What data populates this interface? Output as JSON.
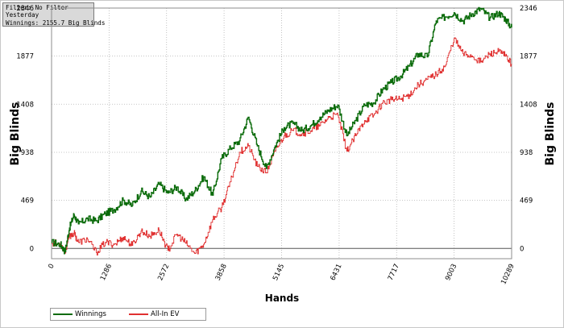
{
  "filter_box": {
    "line1": "Filter: No Filter",
    "line2": "Yesterday",
    "line3": "Winnings: 2155.7 Big Blinds"
  },
  "chart_data": {
    "type": "line",
    "xlabel": "Hands",
    "ylabel": "Big Blinds",
    "ylabel_right": "Big Blinds",
    "x_ticks": [
      0,
      1286,
      2572,
      3858,
      5145,
      6431,
      7717,
      9003,
      10289
    ],
    "y_ticks": [
      0,
      469,
      938,
      1408,
      1877,
      2346
    ],
    "xlim": [
      0,
      10289
    ],
    "ylim": [
      -100,
      2346
    ],
    "grid": true,
    "legend_position": "bottom-left",
    "series": [
      {
        "name": "Winnings",
        "color": "#0a6b0a",
        "x": [
          0,
          200,
          300,
          400,
          500,
          600,
          800,
          1000,
          1200,
          1400,
          1600,
          1800,
          2000,
          2200,
          2400,
          2600,
          2800,
          3000,
          3200,
          3400,
          3600,
          3800,
          4000,
          4200,
          4400,
          4600,
          4800,
          5000,
          5200,
          5400,
          5600,
          5800,
          6000,
          6200,
          6400,
          6600,
          6800,
          7000,
          7200,
          7400,
          7600,
          7800,
          8000,
          8200,
          8400,
          8600,
          8800,
          9000,
          9200,
          9400,
          9600,
          9800,
          10000,
          10150,
          10289
        ],
        "y": [
          60,
          40,
          -30,
          200,
          330,
          240,
          290,
          270,
          340,
          380,
          470,
          420,
          560,
          500,
          630,
          540,
          600,
          480,
          560,
          700,
          520,
          880,
          980,
          1050,
          1280,
          1000,
          780,
          1000,
          1180,
          1220,
          1150,
          1200,
          1280,
          1350,
          1400,
          1100,
          1250,
          1400,
          1420,
          1550,
          1620,
          1680,
          1780,
          1900,
          1870,
          2220,
          2260,
          2300,
          2220,
          2290,
          2340,
          2250,
          2300,
          2240,
          2155
        ]
      },
      {
        "name": "All-In EV",
        "color": "#e03030",
        "x": [
          0,
          200,
          300,
          400,
          500,
          600,
          800,
          1000,
          1200,
          1400,
          1600,
          1800,
          2000,
          2200,
          2400,
          2600,
          2800,
          3000,
          3200,
          3400,
          3600,
          3800,
          4000,
          4200,
          4400,
          4600,
          4800,
          5000,
          5200,
          5400,
          5600,
          5800,
          6000,
          6200,
          6400,
          6600,
          6800,
          7000,
          7200,
          7400,
          7600,
          7800,
          8000,
          8200,
          8400,
          8600,
          8800,
          9000,
          9200,
          9400,
          9600,
          9800,
          10000,
          10150,
          10289
        ],
        "y": [
          60,
          40,
          -30,
          120,
          150,
          60,
          90,
          -40,
          60,
          40,
          110,
          30,
          170,
          120,
          180,
          -20,
          140,
          50,
          -50,
          40,
          280,
          400,
          650,
          940,
          1000,
          800,
          740,
          950,
          1100,
          1150,
          1120,
          1150,
          1200,
          1280,
          1300,
          950,
          1100,
          1250,
          1300,
          1420,
          1450,
          1460,
          1500,
          1600,
          1650,
          1700,
          1780,
          2050,
          1900,
          1880,
          1820,
          1900,
          1920,
          1880,
          1800
        ]
      }
    ]
  }
}
